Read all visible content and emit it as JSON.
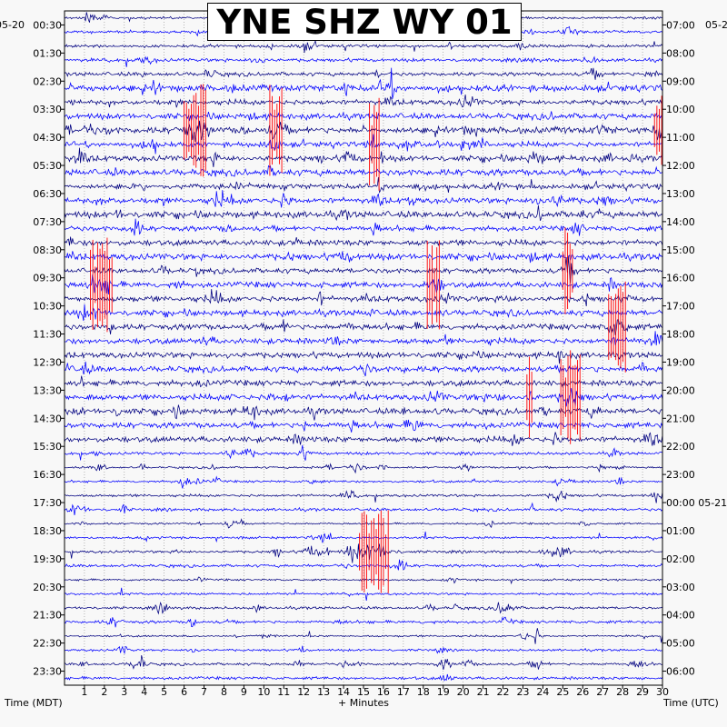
{
  "chart_data": {
    "type": "line",
    "title": "YNE SHZ WY 01",
    "left_date": "05-20",
    "right_date": "05-2",
    "xlabel": "+ Minutes",
    "left_axis_title": "Time (MDT)",
    "right_axis_title": "Time (UTC)",
    "x_ticks": [
      "1",
      "2",
      "3",
      "4",
      "5",
      "6",
      "7",
      "8",
      "9",
      "10",
      "11",
      "12",
      "13",
      "14",
      "15",
      "16",
      "17",
      "18",
      "19",
      "20",
      "21",
      "22",
      "23",
      "24",
      "25",
      "26",
      "27",
      "28",
      "29",
      "30"
    ],
    "xlim": [
      0,
      30
    ],
    "row_minutes": 30,
    "rows": 48,
    "left_labels": [
      "00:30",
      "01:30",
      "02:30",
      "03:30",
      "04:30",
      "05:30",
      "06:30",
      "07:30",
      "08:30",
      "09:30",
      "10:30",
      "11:30",
      "12:30",
      "13:30",
      "14:30",
      "15:30",
      "16:30",
      "17:30",
      "18:30",
      "19:30",
      "20:30",
      "21:30",
      "22:30",
      "23:30"
    ],
    "right_labels": [
      "07:00",
      "08:00",
      "09:00",
      "10:00",
      "11:00",
      "12:00",
      "13:00",
      "14:00",
      "15:00",
      "16:00",
      "17:00",
      "18:00",
      "19:00",
      "20:00",
      "21:00",
      "22:00",
      "23:00",
      "00:00 05-21",
      "01:00",
      "02:00",
      "03:00",
      "04:00",
      "05:00",
      "06:00"
    ],
    "trace_colors": [
      "#000080",
      "#0000ff"
    ],
    "event_color": "#ff0000",
    "grid": true,
    "events": [
      {
        "row": 8,
        "start": 6.0,
        "end": 7.2
      },
      {
        "row": 8,
        "start": 10.3,
        "end": 11.0
      },
      {
        "row": 9,
        "start": 15.3,
        "end": 15.8
      },
      {
        "row": 8,
        "start": 29.6,
        "end": 30.0
      },
      {
        "row": 19,
        "start": 1.3,
        "end": 2.4
      },
      {
        "row": 19,
        "start": 18.2,
        "end": 18.9
      },
      {
        "row": 18,
        "start": 25.0,
        "end": 25.6
      },
      {
        "row": 22,
        "start": 27.3,
        "end": 28.2
      },
      {
        "row": 27,
        "start": 23.2,
        "end": 23.5
      },
      {
        "row": 27,
        "start": 24.9,
        "end": 25.9
      },
      {
        "row": 38,
        "start": 14.8,
        "end": 16.3
      }
    ]
  }
}
